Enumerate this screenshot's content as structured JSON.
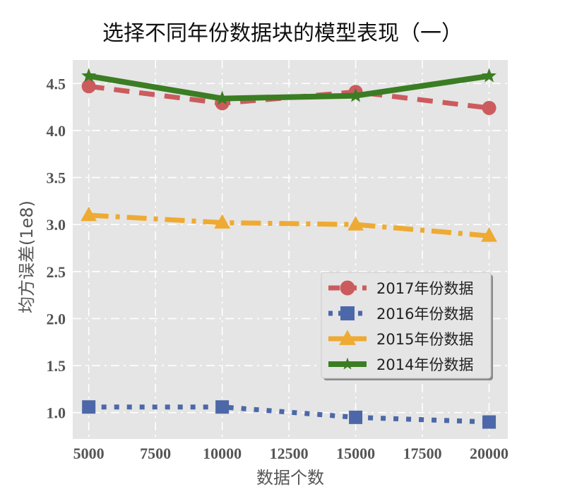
{
  "chart_data": {
    "type": "line",
    "title": "选择不同年份数据块的模型表现（一）",
    "xlabel": "数据个数",
    "ylabel": "均方误差(1e8)",
    "x": [
      5000,
      10000,
      15000,
      20000
    ],
    "xlim": [
      4400,
      20700
    ],
    "ylim": [
      0.72,
      4.75
    ],
    "xticks": [
      5000,
      7500,
      10000,
      12500,
      15000,
      17500,
      20000
    ],
    "yticks": [
      1.0,
      1.5,
      2.0,
      2.5,
      3.0,
      3.5,
      4.0,
      4.5
    ],
    "grid": true,
    "legend_position": "center-right",
    "series": [
      {
        "name": "2017年份数据",
        "values": [
          4.47,
          4.29,
          4.41,
          4.24
        ],
        "color": "#cc5b5e",
        "dash": "22 14",
        "marker": "circle"
      },
      {
        "name": "2016年份数据",
        "values": [
          1.06,
          1.06,
          0.95,
          0.9
        ],
        "color": "#4d68a8",
        "dash": "7 11",
        "marker": "square"
      },
      {
        "name": "2015年份数据",
        "values": [
          3.1,
          3.02,
          3.0,
          2.88
        ],
        "color": "#eeaa33",
        "dash": "28 10 6 10",
        "marker": "triangle"
      },
      {
        "name": "2014年份数据",
        "values": [
          4.58,
          4.34,
          4.37,
          4.58
        ],
        "color": "#3b7d23",
        "dash": "",
        "marker": "star"
      }
    ]
  }
}
